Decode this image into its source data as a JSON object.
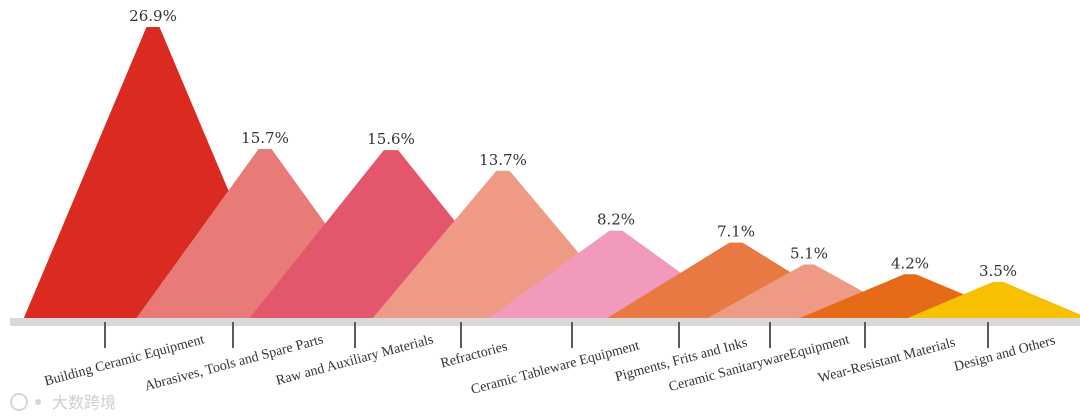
{
  "chart_data": {
    "type": "area",
    "categories": [
      "Building Ceramic Equipment",
      "Abrasives, Tools and Spare Parts",
      "Raw and Auxiliary Materials",
      "Refractories",
      "Ceramic Tableware Equipment",
      "Pigments, Frits and Inks",
      "Ceramic SanitarywareEquipment",
      "Wear-Resistant Materials",
      "Design and Others"
    ],
    "values": [
      26.9,
      15.7,
      15.6,
      13.7,
      8.2,
      7.1,
      5.1,
      4.2,
      3.5
    ],
    "value_labels": [
      "26.9%",
      "15.7%",
      "15.6%",
      "13.7%",
      "8.2%",
      "7.1%",
      "5.1%",
      "4.2%",
      "3.5%"
    ],
    "colors": [
      "#db2a1f",
      "#e87b78",
      "#e3566c",
      "#ee9a84",
      "#f19abc",
      "#e97943",
      "#ee9a84",
      "#e66a17",
      "#f7c000"
    ],
    "ylim": [
      0,
      26.9
    ],
    "grid": false,
    "legend": "none",
    "title": "",
    "xlabel": "",
    "ylabel": "",
    "watermark": "大数跨境"
  }
}
